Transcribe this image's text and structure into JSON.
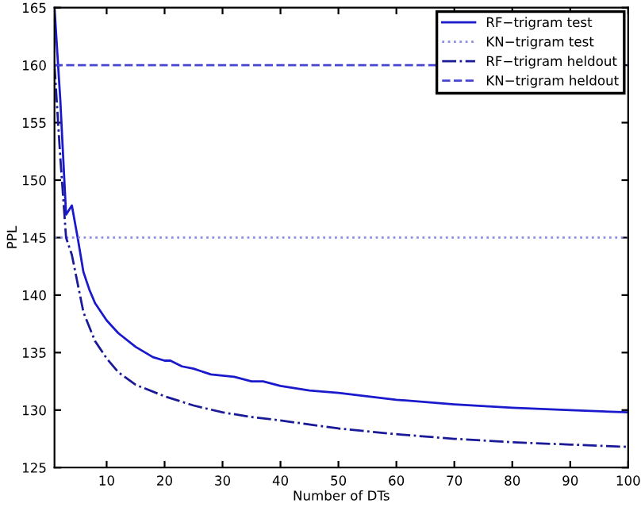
{
  "chart_data": {
    "type": "line",
    "xlabel": "Number of DTs",
    "ylabel": "PPL",
    "xlim": [
      1,
      100
    ],
    "ylim": [
      125,
      165
    ],
    "xticks": [
      10,
      20,
      30,
      40,
      50,
      60,
      70,
      80,
      90,
      100
    ],
    "yticks": [
      125,
      130,
      135,
      140,
      145,
      150,
      155,
      160,
      165
    ],
    "grid": false,
    "legend": "top right",
    "marker": "none",
    "series": [
      {
        "name": "RF−trigram test",
        "color": "#1a1acc",
        "line_style": "solid",
        "x": [
          1,
          2,
          3,
          4,
          5,
          6,
          7,
          8,
          10,
          12,
          15,
          18,
          20,
          21,
          23,
          25,
          28,
          32,
          35,
          37,
          40,
          45,
          50,
          60,
          70,
          80,
          90,
          100
        ],
        "values": [
          165,
          157,
          147,
          147.8,
          145,
          142,
          140.5,
          139.3,
          137.8,
          136.7,
          135.5,
          134.6,
          134.3,
          134.3,
          133.8,
          133.6,
          133.1,
          132.9,
          132.5,
          132.5,
          132.1,
          131.7,
          131.5,
          130.9,
          130.5,
          130.2,
          130.0,
          129.8
        ]
      },
      {
        "name": "KN−trigram test",
        "color": "#8c8ce6",
        "line_style": "dotted",
        "x": [
          1,
          100
        ],
        "values": [
          145,
          145
        ]
      },
      {
        "name": "RF−trigram heldout",
        "color": "#1a1a99",
        "line_style": "dashdot",
        "x": [
          1,
          2,
          3,
          4,
          5,
          6,
          8,
          10,
          12,
          15,
          20,
          25,
          30,
          35,
          40,
          50,
          60,
          70,
          80,
          90,
          100
        ],
        "values": [
          160,
          152,
          145,
          143.5,
          141,
          138.5,
          136,
          134.5,
          133.3,
          132.2,
          131.2,
          130.4,
          129.8,
          129.4,
          129.1,
          128.4,
          127.9,
          127.5,
          127.2,
          127.0,
          126.8
        ]
      },
      {
        "name": "KN−trigram heldout",
        "color": "#4646d2",
        "line_style": "dashed",
        "x": [
          1,
          100
        ],
        "values": [
          160,
          160
        ]
      }
    ]
  }
}
